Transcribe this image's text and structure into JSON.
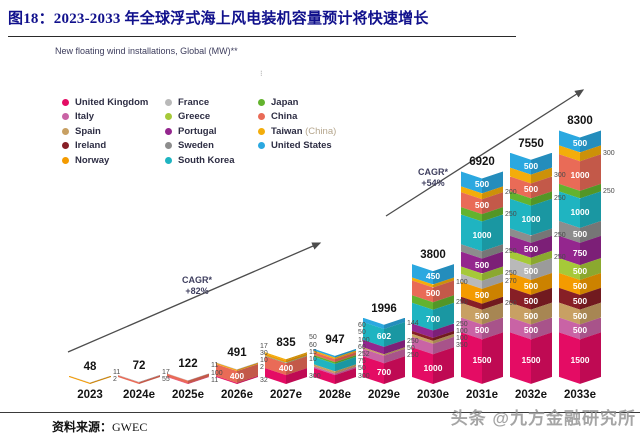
{
  "header": {
    "title": "图18：2023-2033 年全球浮式海上风电装机容量预计将快速增长",
    "subtitle": "New floating wind installations, Global  (MW)**"
  },
  "legend_columns": [
    [
      {
        "label": "United Kingdom",
        "color": "#e40c64"
      },
      {
        "label": "Italy",
        "color": "#c963a5"
      },
      {
        "label": "Spain",
        "color": "#c8a063"
      },
      {
        "label": "Ireland",
        "color": "#871f26"
      },
      {
        "label": "Norway",
        "color": "#f49b00"
      }
    ],
    [
      {
        "label": "France",
        "color": "#b9b9b9"
      },
      {
        "label": "Greece",
        "color": "#a6c939"
      },
      {
        "label": "Portugal",
        "color": "#94268e"
      },
      {
        "label": "Sweden",
        "color": "#8d8d8d"
      },
      {
        "label": "South Korea",
        "color": "#1fb4c1"
      }
    ],
    [
      {
        "label": "Japan",
        "color": "#63b32e"
      },
      {
        "label": "China",
        "color": "#e96b57"
      },
      {
        "label": "Taiwan",
        "suffix": " (China)",
        "color": "#f3ad0b"
      },
      {
        "label": "United States",
        "color": "#2ba8e0"
      }
    ]
  ],
  "annotations": {
    "cagr1": {
      "line1": "CAGR*",
      "line2": "+82%"
    },
    "cagr2": {
      "line1": "CAGR*",
      "line2": "+54%"
    }
  },
  "footer": {
    "source_label": "资料来源：",
    "source_value": "GWEC",
    "watermark": "头条 @九方金融研究所"
  },
  "chart_data": {
    "type": "bar",
    "subtype": "stacked-chevron",
    "title": "New floating wind installations, Global (MW)**",
    "unit": "MW",
    "legend_position": "top-left",
    "grid": false,
    "categories": [
      "2023",
      "2024e",
      "2025e",
      "2026e",
      "2027e",
      "2028e",
      "2029e",
      "2030e",
      "2031e",
      "2032e",
      "2033e"
    ],
    "totals": [
      48,
      72,
      122,
      491,
      835,
      947,
      1996,
      3800,
      6920,
      7550,
      8300
    ],
    "countries": [
      {
        "name": "United Kingdom",
        "color": "#e40c64"
      },
      {
        "name": "Italy",
        "color": "#c963a5"
      },
      {
        "name": "Spain",
        "color": "#c8a063"
      },
      {
        "name": "Ireland",
        "color": "#871f26"
      },
      {
        "name": "Norway",
        "color": "#f49b00"
      },
      {
        "name": "France",
        "color": "#b9b9b9"
      },
      {
        "name": "Greece",
        "color": "#a6c939"
      },
      {
        "name": "Portugal",
        "color": "#94268e"
      },
      {
        "name": "Sweden",
        "color": "#8d8d8d"
      },
      {
        "name": "South Korea",
        "color": "#1fb4c1"
      },
      {
        "name": "Japan",
        "color": "#63b32e"
      },
      {
        "name": "China",
        "color": "#e96b57"
      },
      {
        "name": "Taiwan (China)",
        "color": "#f3ad0b"
      },
      {
        "name": "United States",
        "color": "#2ba8e0"
      }
    ],
    "bars": [
      {
        "year": "2023",
        "total": 48,
        "segments": [
          {
            "country": "Norway",
            "value": 35,
            "label": "none"
          },
          {
            "country": "China",
            "value": 2,
            "label": "out"
          },
          {
            "country": "France",
            "value": 11,
            "label": "out"
          }
        ]
      },
      {
        "year": "2024e",
        "total": 72,
        "segments": [
          {
            "country": "China",
            "value": 55,
            "label": "out"
          },
          {
            "country": "France",
            "value": 17,
            "label": "out"
          }
        ]
      },
      {
        "year": "2025e",
        "total": 122,
        "segments": [
          {
            "country": "United Kingdom",
            "value": 11,
            "label": "out"
          },
          {
            "country": "China",
            "value": 100,
            "label": "out"
          },
          {
            "country": "France",
            "value": 11,
            "label": "out"
          }
        ]
      },
      {
        "year": "2026e",
        "total": 491,
        "segments": [
          {
            "country": "United Kingdom",
            "value": 32,
            "label": "out"
          },
          {
            "country": "China",
            "value": 400,
            "label": "in"
          },
          {
            "country": "Japan",
            "value": 2,
            "label": "out"
          },
          {
            "country": "Taiwan (China)",
            "value": 10,
            "label": "out"
          },
          {
            "country": "Norway",
            "value": 30,
            "label": "out"
          },
          {
            "country": "France",
            "value": 17,
            "label": "out"
          }
        ]
      },
      {
        "year": "2027e",
        "total": 835,
        "segments": [
          {
            "country": "United Kingdom",
            "value": 300,
            "label": "out"
          },
          {
            "country": "China",
            "value": 400,
            "label": "in"
          },
          {
            "country": "Japan",
            "value": 10,
            "label": "out"
          },
          {
            "country": "Sweden",
            "value": 15,
            "label": "out"
          },
          {
            "country": "Norway",
            "value": 60,
            "label": "out"
          },
          {
            "country": "Taiwan (China)",
            "value": 50,
            "label": "out"
          }
        ]
      },
      {
        "year": "2028e",
        "total": 947,
        "segments": [
          {
            "country": "United Kingdom",
            "value": 300,
            "label": "out"
          },
          {
            "country": "Italy",
            "value": 50,
            "label": "out"
          },
          {
            "country": "Spain",
            "value": 75,
            "label": "out"
          },
          {
            "country": "South Korea",
            "value": 252,
            "label": "out"
          },
          {
            "country": "Japan",
            "value": 60,
            "label": "out"
          },
          {
            "country": "China",
            "value": 100,
            "label": "out"
          },
          {
            "country": "Taiwan (China)",
            "value": 50,
            "label": "out"
          },
          {
            "country": "United States",
            "value": 60,
            "label": "out"
          }
        ]
      },
      {
        "year": "2029e",
        "total": 1996,
        "segments": [
          {
            "country": "United Kingdom",
            "value": 700,
            "label": "in"
          },
          {
            "country": "Italy",
            "value": 250,
            "label": "out"
          },
          {
            "country": "Spain",
            "value": 50,
            "label": "out"
          },
          {
            "country": "Portugal",
            "value": 250,
            "label": "out"
          },
          {
            "country": "South Korea",
            "value": 602,
            "label": "in"
          },
          {
            "country": "United States",
            "value": 144,
            "label": "out"
          }
        ]
      },
      {
        "year": "2030e",
        "total": 3800,
        "segments": [
          {
            "country": "United Kingdom",
            "value": 1000,
            "label": "in"
          },
          {
            "country": "Italy",
            "value": 350,
            "label": "out"
          },
          {
            "country": "Spain",
            "value": 100,
            "label": "out"
          },
          {
            "country": "Ireland",
            "value": 100,
            "label": "out"
          },
          {
            "country": "Portugal",
            "value": 250,
            "label": "out"
          },
          {
            "country": "South Korea",
            "value": 700,
            "label": "in"
          },
          {
            "country": "Japan",
            "value": 250,
            "label": "out"
          },
          {
            "country": "China",
            "value": 500,
            "label": "in"
          },
          {
            "country": "Taiwan (China)",
            "value": 100,
            "label": "out"
          },
          {
            "country": "United States",
            "value": 450,
            "label": "in"
          }
        ]
      },
      {
        "year": "2031e",
        "total": 6920,
        "segments": [
          {
            "country": "United Kingdom",
            "value": 1500,
            "label": "in"
          },
          {
            "country": "Italy",
            "value": 500,
            "label": "in"
          },
          {
            "country": "Spain",
            "value": 500,
            "label": "in"
          },
          {
            "country": "Ireland",
            "value": 200,
            "label": "out"
          },
          {
            "country": "Norway",
            "value": 500,
            "label": "in"
          },
          {
            "country": "France",
            "value": 270,
            "label": "out"
          },
          {
            "country": "Greece",
            "value": 250,
            "label": "out"
          },
          {
            "country": "Portugal",
            "value": 500,
            "label": "in"
          },
          {
            "country": "Sweden",
            "value": 250,
            "label": "out"
          },
          {
            "country": "South Korea",
            "value": 1000,
            "label": "in"
          },
          {
            "country": "Japan",
            "value": 250,
            "label": "out"
          },
          {
            "country": "China",
            "value": 500,
            "label": "in"
          },
          {
            "country": "Taiwan (China)",
            "value": 200,
            "label": "out"
          },
          {
            "country": "United States",
            "value": 500,
            "label": "in"
          }
        ]
      },
      {
        "year": "2032e",
        "total": 7550,
        "segments": [
          {
            "country": "United Kingdom",
            "value": 1500,
            "label": "in"
          },
          {
            "country": "Italy",
            "value": 500,
            "label": "in"
          },
          {
            "country": "Spain",
            "value": 500,
            "label": "in"
          },
          {
            "country": "Ireland",
            "value": 500,
            "label": "in"
          },
          {
            "country": "Norway",
            "value": 500,
            "label": "in"
          },
          {
            "country": "France",
            "value": 500,
            "label": "in"
          },
          {
            "country": "Greece",
            "value": 250,
            "label": "out"
          },
          {
            "country": "Portugal",
            "value": 500,
            "label": "in"
          },
          {
            "country": "Sweden",
            "value": 250,
            "label": "out"
          },
          {
            "country": "South Korea",
            "value": 1000,
            "label": "in"
          },
          {
            "country": "Japan",
            "value": 250,
            "label": "out"
          },
          {
            "country": "China",
            "value": 500,
            "label": "in"
          },
          {
            "country": "Taiwan (China)",
            "value": 300,
            "label": "out"
          },
          {
            "country": "United States",
            "value": 500,
            "label": "in"
          }
        ]
      },
      {
        "year": "2033e",
        "total": 8300,
        "segments": [
          {
            "country": "United Kingdom",
            "value": 1500,
            "label": "in"
          },
          {
            "country": "Italy",
            "value": 500,
            "label": "in"
          },
          {
            "country": "Spain",
            "value": 500,
            "label": "in"
          },
          {
            "country": "Ireland",
            "value": 500,
            "label": "in"
          },
          {
            "country": "Norway",
            "value": 500,
            "label": "in"
          },
          {
            "country": "Greece",
            "value": 500,
            "label": "in"
          },
          {
            "country": "Portugal",
            "value": 750,
            "label": "in"
          },
          {
            "country": "Sweden",
            "value": 500,
            "label": "in"
          },
          {
            "country": "South Korea",
            "value": 1000,
            "label": "in"
          },
          {
            "country": "Japan",
            "value": 250,
            "label": "out"
          },
          {
            "country": "China",
            "value": 1000,
            "label": "in"
          },
          {
            "country": "Taiwan (China)",
            "value": 300,
            "label": "out"
          },
          {
            "country": "United States",
            "value": 500,
            "label": "in"
          }
        ]
      }
    ]
  }
}
